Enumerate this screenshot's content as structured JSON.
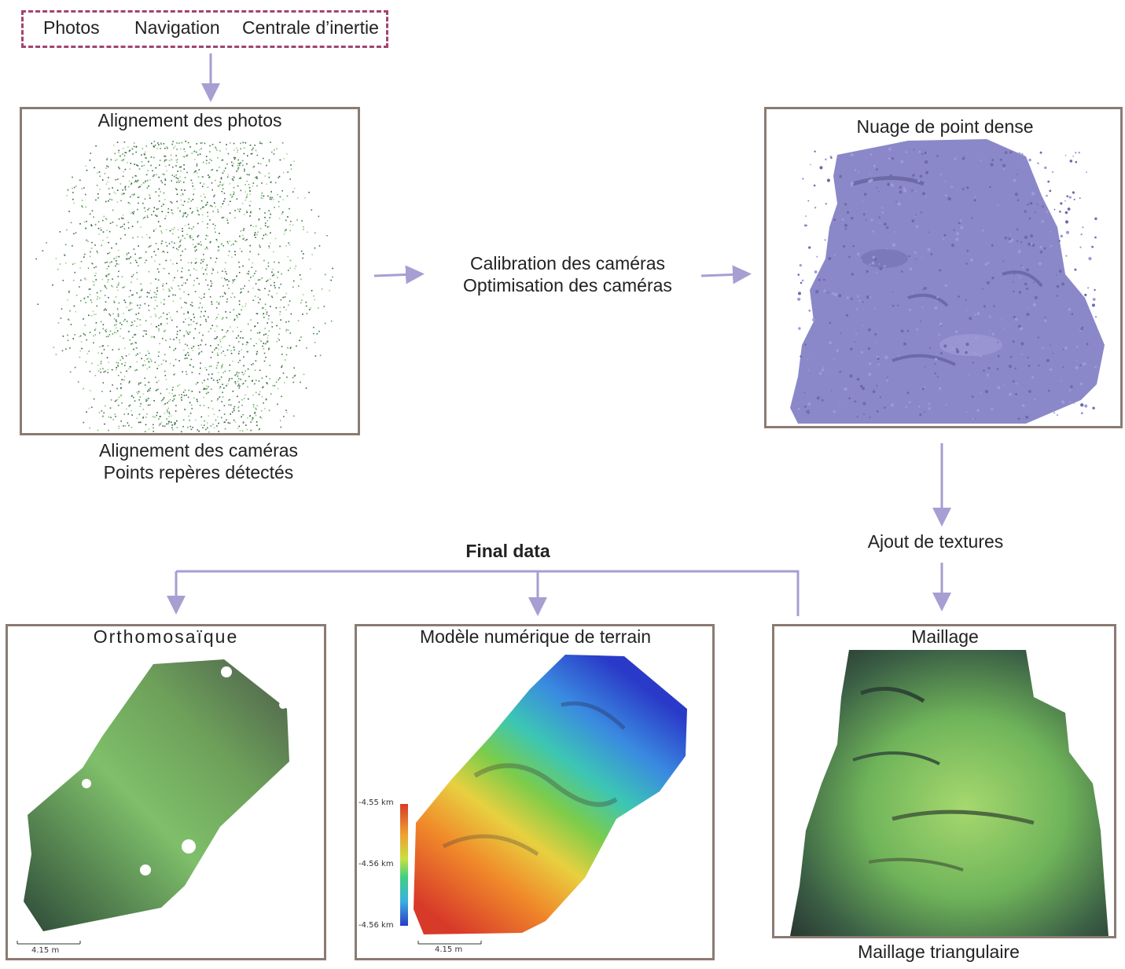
{
  "inputs": {
    "photos": "Photos",
    "navigation": "Navigation",
    "inertial": "Centrale d’inertie"
  },
  "align_photos": {
    "title": "Alignement des photos",
    "caption_1": "Alignement des caméras",
    "caption_2": "Points repères détectés"
  },
  "calibration": {
    "line_1": "Calibration des caméras",
    "line_2": "Optimisation des caméras"
  },
  "dense_cloud": {
    "title": "Nuage de point dense"
  },
  "textures": {
    "label": "Ajout de textures"
  },
  "final": {
    "label": "Final data"
  },
  "ortho": {
    "title": "Orthomosaïque",
    "scale": "4.15 m"
  },
  "dem": {
    "title": "Modèle numérique de terrain",
    "scale": "4.15 m",
    "colorbar": [
      "-4.55 km",
      "-4.56 km",
      "-4.56 km"
    ]
  },
  "mesh": {
    "title": "Maillage",
    "caption": "Maillage triangulaire"
  },
  "colors": {
    "arrow": "#a79ed1",
    "box_border": "#8a7b73",
    "dashed": "#a3446f",
    "cloud": "#8b88c9"
  }
}
